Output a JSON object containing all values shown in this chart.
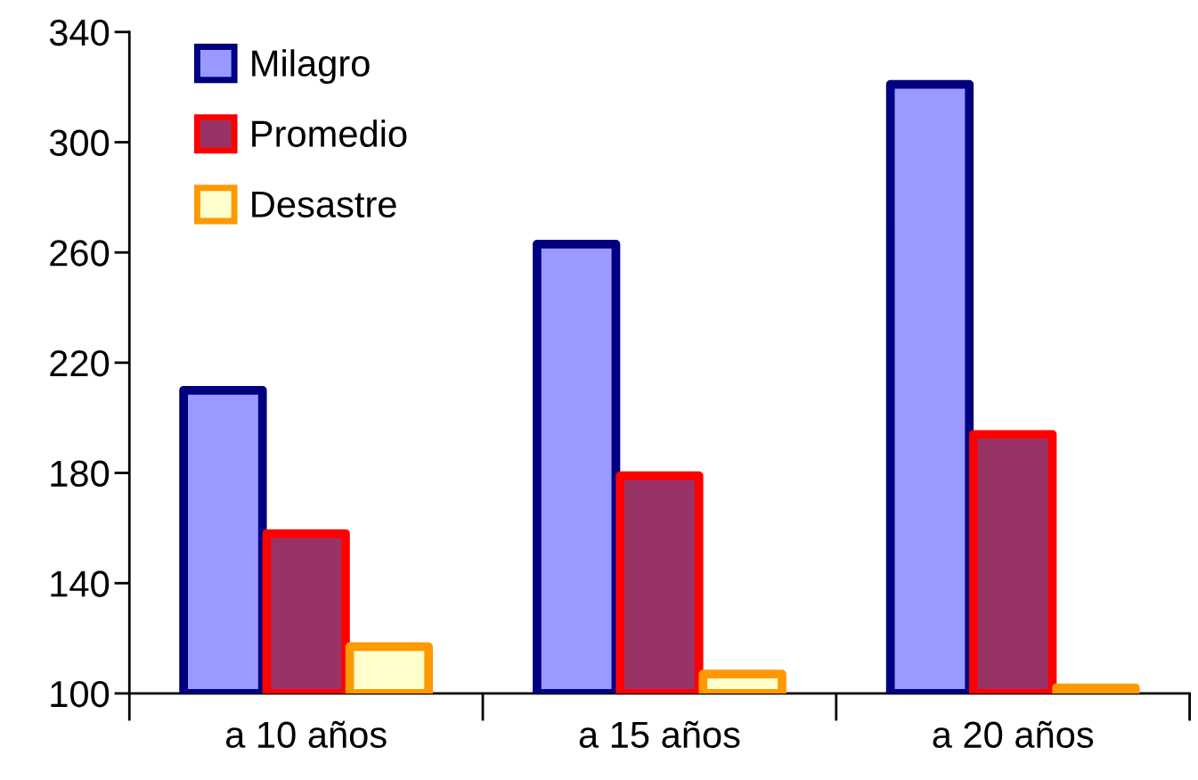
{
  "chart_data": {
    "type": "bar",
    "categories": [
      "a 10 años",
      "a 15 años",
      "a 20 años"
    ],
    "series": [
      {
        "name": "Milagro",
        "color": "#9999ff",
        "values": [
          210,
          263,
          321
        ]
      },
      {
        "name": "Promedio",
        "color": "#993366",
        "values": [
          158,
          179,
          194
        ]
      },
      {
        "name": "Desastre",
        "color": "#ffffcc",
        "values": [
          117,
          107,
          102
        ]
      }
    ],
    "ylim": [
      100,
      340
    ],
    "yticks": [
      100,
      140,
      180,
      220,
      260,
      300,
      340
    ],
    "grid": false,
    "legend": "top left"
  }
}
